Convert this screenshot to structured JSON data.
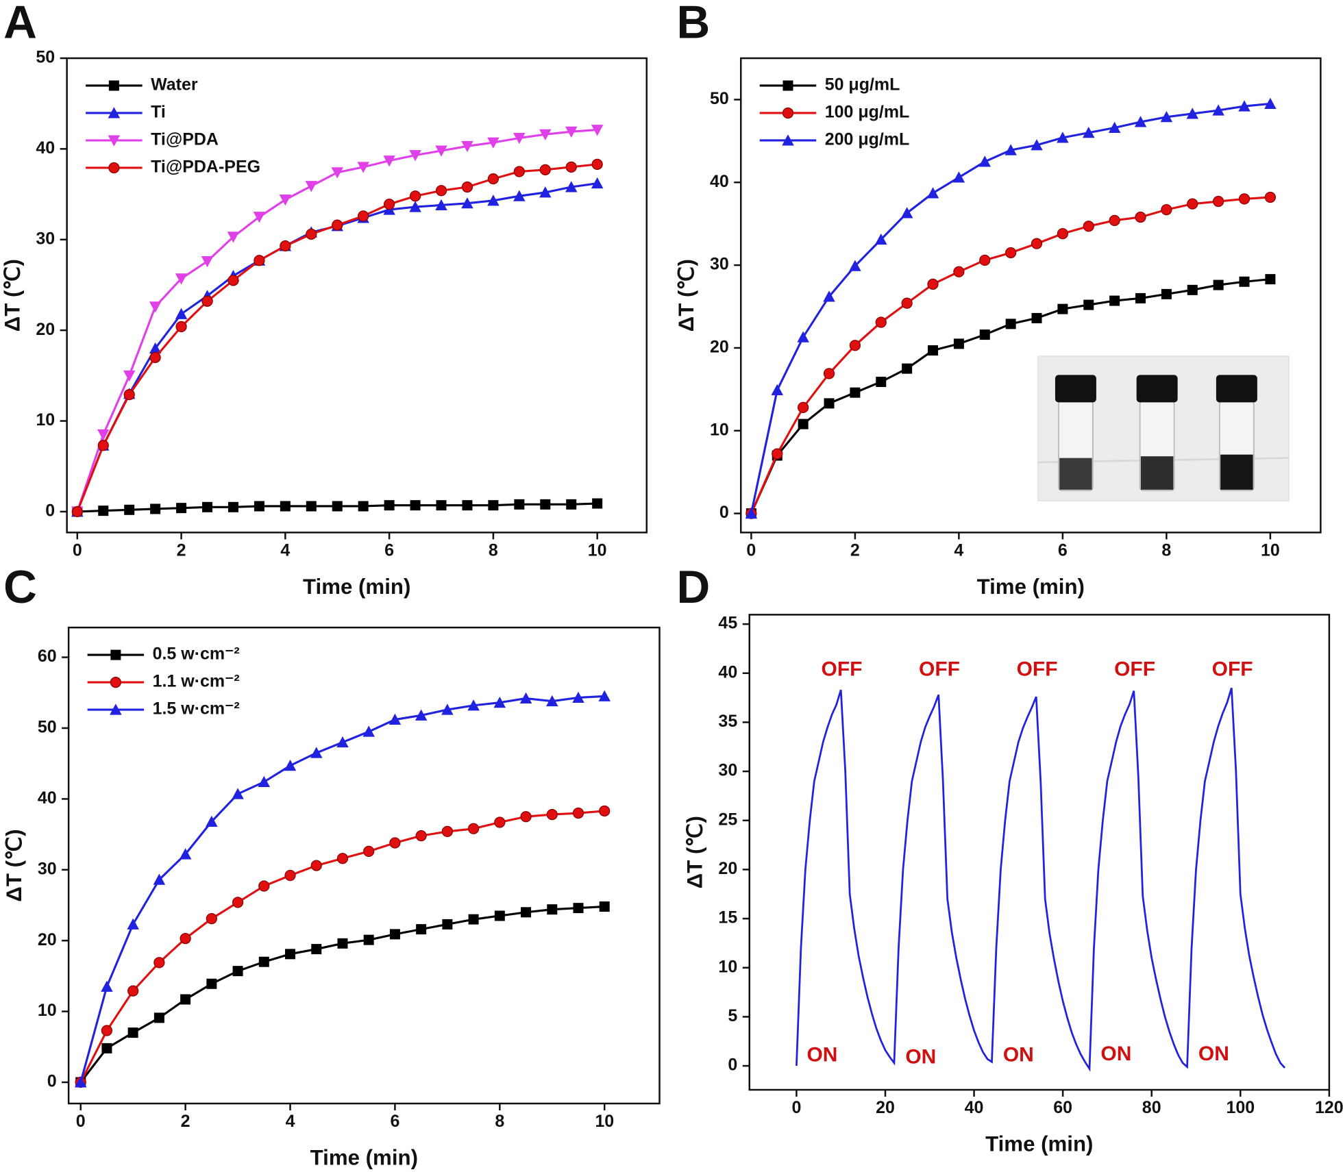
{
  "chart_data": [
    {
      "type": "line",
      "label": "A",
      "x_label": "Time (min)",
      "y_label": "ΔT (℃)",
      "x": [
        0,
        0.5,
        1,
        1.5,
        2,
        2.5,
        3,
        3.5,
        4,
        4.5,
        5,
        5.5,
        6,
        6.5,
        7,
        7.5,
        8,
        8.5,
        9,
        9.5,
        10
      ],
      "xlim": [
        -0.2,
        10.95
      ],
      "xticks": [
        0,
        2,
        4,
        6,
        8,
        10
      ],
      "ylim": [
        -2.3,
        50
      ],
      "yticks": [
        0,
        10,
        20,
        30,
        40,
        50
      ],
      "legend": "upper left",
      "series": [
        {
          "name": "Water",
          "color": "#000000",
          "marker": "square",
          "values": [
            0,
            0.1,
            0.2,
            0.3,
            0.4,
            0.5,
            0.5,
            0.6,
            0.6,
            0.6,
            0.6,
            0.6,
            0.7,
            0.7,
            0.7,
            0.7,
            0.7,
            0.8,
            0.8,
            0.8,
            0.9
          ]
        },
        {
          "name": "Ti",
          "color": "#2121e0",
          "marker": "triangle-up",
          "values": [
            0,
            7.3,
            13,
            18,
            21.8,
            23.8,
            26,
            27.7,
            29.3,
            30.8,
            31.5,
            32.4,
            33.3,
            33.6,
            33.8,
            34,
            34.3,
            34.8,
            35.2,
            35.8,
            36.2
          ]
        },
        {
          "name": "Ti@PDA",
          "color": "#e040e8",
          "marker": "triangle-down",
          "values": [
            0,
            8.5,
            15,
            22.6,
            25.7,
            27.6,
            30.3,
            32.5,
            34.4,
            35.9,
            37.4,
            38,
            38.7,
            39.3,
            39.8,
            40.3,
            40.7,
            41.2,
            41.6,
            41.9,
            42.1
          ]
        },
        {
          "name": "Ti@PDA-PEG",
          "color": "#e01010",
          "marker": "circle",
          "values": [
            0,
            7.3,
            12.9,
            17,
            20.4,
            23.2,
            25.5,
            27.7,
            29.3,
            30.6,
            31.6,
            32.6,
            33.9,
            34.8,
            35.4,
            35.8,
            36.7,
            37.5,
            37.7,
            38,
            38.3
          ]
        }
      ]
    },
    {
      "type": "line",
      "label": "B",
      "x_label": "Time (min)",
      "y_label": "ΔT (℃)",
      "x": [
        0,
        0.5,
        1,
        1.5,
        2,
        2.5,
        3,
        3.5,
        4,
        4.5,
        5,
        5.5,
        6,
        6.5,
        7,
        7.5,
        8,
        8.5,
        9,
        9.5,
        10
      ],
      "xlim": [
        -0.2,
        10.97
      ],
      "xticks": [
        0,
        2,
        4,
        6,
        8,
        10
      ],
      "ylim": [
        -2.3,
        55
      ],
      "yticks": [
        0,
        10,
        20,
        30,
        40,
        50
      ],
      "legend": "upper left",
      "series": [
        {
          "name": "50  μg/mL",
          "color": "#000000",
          "marker": "square",
          "values": [
            0,
            7,
            10.8,
            13.3,
            14.6,
            15.9,
            17.5,
            19.7,
            20.5,
            21.6,
            22.9,
            23.6,
            24.7,
            25.2,
            25.7,
            26,
            26.5,
            27,
            27.6,
            28,
            28.3
          ]
        },
        {
          "name": "100 μg/mL",
          "color": "#e01010",
          "marker": "circle",
          "values": [
            0,
            7.2,
            12.8,
            16.9,
            20.3,
            23.1,
            25.4,
            27.7,
            29.2,
            30.6,
            31.5,
            32.6,
            33.8,
            34.7,
            35.4,
            35.8,
            36.7,
            37.4,
            37.7,
            38,
            38.2
          ]
        },
        {
          "name": "200 μg/mL",
          "color": "#2121e0",
          "marker": "triangle-up",
          "values": [
            0,
            14.9,
            21.3,
            26.2,
            29.9,
            33.1,
            36.3,
            38.7,
            40.6,
            42.5,
            43.9,
            44.5,
            45.4,
            46,
            46.6,
            47.3,
            47.9,
            48.3,
            48.7,
            49.2,
            49.5
          ]
        }
      ]
    },
    {
      "type": "line",
      "label": "C",
      "x_label": "Time (min)",
      "y_label": "ΔT (℃)",
      "x": [
        0,
        0.5,
        1,
        1.5,
        2,
        2.5,
        3,
        3.5,
        4,
        4.5,
        5,
        5.5,
        6,
        6.5,
        7,
        7.5,
        8,
        8.5,
        9,
        9.5,
        10
      ],
      "xlim": [
        -0.23,
        11.05
      ],
      "xticks": [
        0,
        2,
        4,
        6,
        8,
        10
      ],
      "ylim": [
        -3,
        64.2
      ],
      "yticks": [
        0,
        10,
        20,
        30,
        40,
        50,
        60
      ],
      "legend": "upper left",
      "series": [
        {
          "name": "0.5 w·cm⁻²",
          "color": "#000000",
          "marker": "square",
          "values": [
            0,
            4.8,
            7,
            9.1,
            11.7,
            13.9,
            15.7,
            17,
            18.1,
            18.8,
            19.6,
            20.1,
            20.9,
            21.6,
            22.3,
            23,
            23.5,
            24,
            24.4,
            24.6,
            24.8
          ]
        },
        {
          "name": "1.1 w·cm⁻²",
          "color": "#e01010",
          "marker": "circle",
          "values": [
            0,
            7.3,
            12.9,
            16.9,
            20.3,
            23.1,
            25.4,
            27.7,
            29.2,
            30.6,
            31.6,
            32.6,
            33.8,
            34.8,
            35.4,
            35.8,
            36.7,
            37.5,
            37.8,
            38,
            38.3
          ]
        },
        {
          "name": "1.5 w·cm⁻²",
          "color": "#2121e0",
          "marker": "triangle-up",
          "values": [
            0,
            13.5,
            22.3,
            28.6,
            32.2,
            36.8,
            40.7,
            42.4,
            44.7,
            46.5,
            48,
            49.5,
            51.2,
            51.8,
            52.6,
            53.2,
            53.6,
            54.2,
            53.8,
            54.3,
            54.5
          ]
        }
      ]
    },
    {
      "type": "line",
      "label": "D",
      "x_label": "Time (min)",
      "y_label": "ΔT (℃)",
      "x": [
        0,
        1,
        2,
        3,
        4,
        5,
        6,
        7,
        8,
        9,
        10,
        11,
        12,
        13,
        14,
        15,
        16,
        17,
        18,
        19,
        20,
        21,
        22,
        23,
        24,
        25,
        26,
        27,
        28,
        29,
        30,
        31,
        32,
        33,
        34,
        35,
        36,
        37,
        38,
        39,
        40,
        41,
        42,
        43,
        44,
        45,
        46,
        47,
        48,
        49,
        50,
        51,
        52,
        53,
        54,
        55,
        56,
        57,
        58,
        59,
        60,
        61,
        62,
        63,
        64,
        65,
        66,
        67,
        68,
        69,
        70,
        71,
        72,
        73,
        74,
        75,
        76,
        77,
        78,
        79,
        80,
        81,
        82,
        83,
        84,
        85,
        86,
        87,
        88,
        89,
        90,
        91,
        92,
        93,
        94,
        95,
        96,
        97,
        98,
        99,
        100,
        101,
        102,
        103,
        104,
        105,
        106,
        107,
        108,
        109,
        110
      ],
      "xlim": [
        -10.6,
        120
      ],
      "xticks": [
        0,
        20,
        40,
        60,
        80,
        100,
        120
      ],
      "ylim": [
        -2.44,
        45.96
      ],
      "yticks": [
        0,
        5,
        10,
        15,
        20,
        25,
        30,
        35,
        40,
        45
      ],
      "series": [
        {
          "color": "#2121e0",
          "values": [
            0,
            12,
            20,
            25,
            29,
            31,
            33,
            34.5,
            35.8,
            36.8,
            38.3,
            30,
            17.5,
            14,
            11.2,
            9,
            7,
            5.3,
            3.8,
            2.6,
            1.6,
            0.9,
            0.3,
            12,
            20,
            25,
            29,
            31,
            33,
            34.5,
            35.6,
            36.6,
            37.8,
            29,
            17,
            13.6,
            11,
            8.8,
            6.8,
            5.1,
            3.6,
            2.4,
            1.4,
            0.7,
            0.4,
            12,
            20,
            25,
            29,
            31,
            33,
            34.4,
            35.5,
            36.5,
            37.6,
            29,
            17,
            13.5,
            10.9,
            8.6,
            6.6,
            4.9,
            3.4,
            2.2,
            1.2,
            0.4,
            -0.3,
            12,
            20,
            25,
            29,
            31,
            33,
            34.6,
            35.8,
            36.8,
            38.2,
            29.5,
            17.3,
            13.8,
            11,
            8.8,
            6.8,
            5,
            3.5,
            2.2,
            1.1,
            0.3,
            -0.1,
            12,
            20,
            25,
            29,
            31,
            33,
            34.6,
            35.9,
            37,
            38.5,
            30,
            17.5,
            14,
            11.2,
            9,
            7,
            5.2,
            3.7,
            2.4,
            1.2,
            0.3,
            -0.2
          ]
        }
      ],
      "annotations": [
        {
          "text": "OFF",
          "x": 10.2,
          "y": 40.3
        },
        {
          "text": "OFF",
          "x": 32.2,
          "y": 40.3
        },
        {
          "text": "OFF",
          "x": 54.2,
          "y": 40.3
        },
        {
          "text": "OFF",
          "x": 76.2,
          "y": 40.3
        },
        {
          "text": "OFF",
          "x": 98.2,
          "y": 40.3
        },
        {
          "text": "ON",
          "x": 5.8,
          "y": 1.0
        },
        {
          "text": "ON",
          "x": 28,
          "y": 0.8
        },
        {
          "text": "ON",
          "x": 50,
          "y": 1.0
        },
        {
          "text": "ON",
          "x": 72,
          "y": 1.1
        },
        {
          "text": "ON",
          "x": 94,
          "y": 1.1
        }
      ]
    }
  ]
}
